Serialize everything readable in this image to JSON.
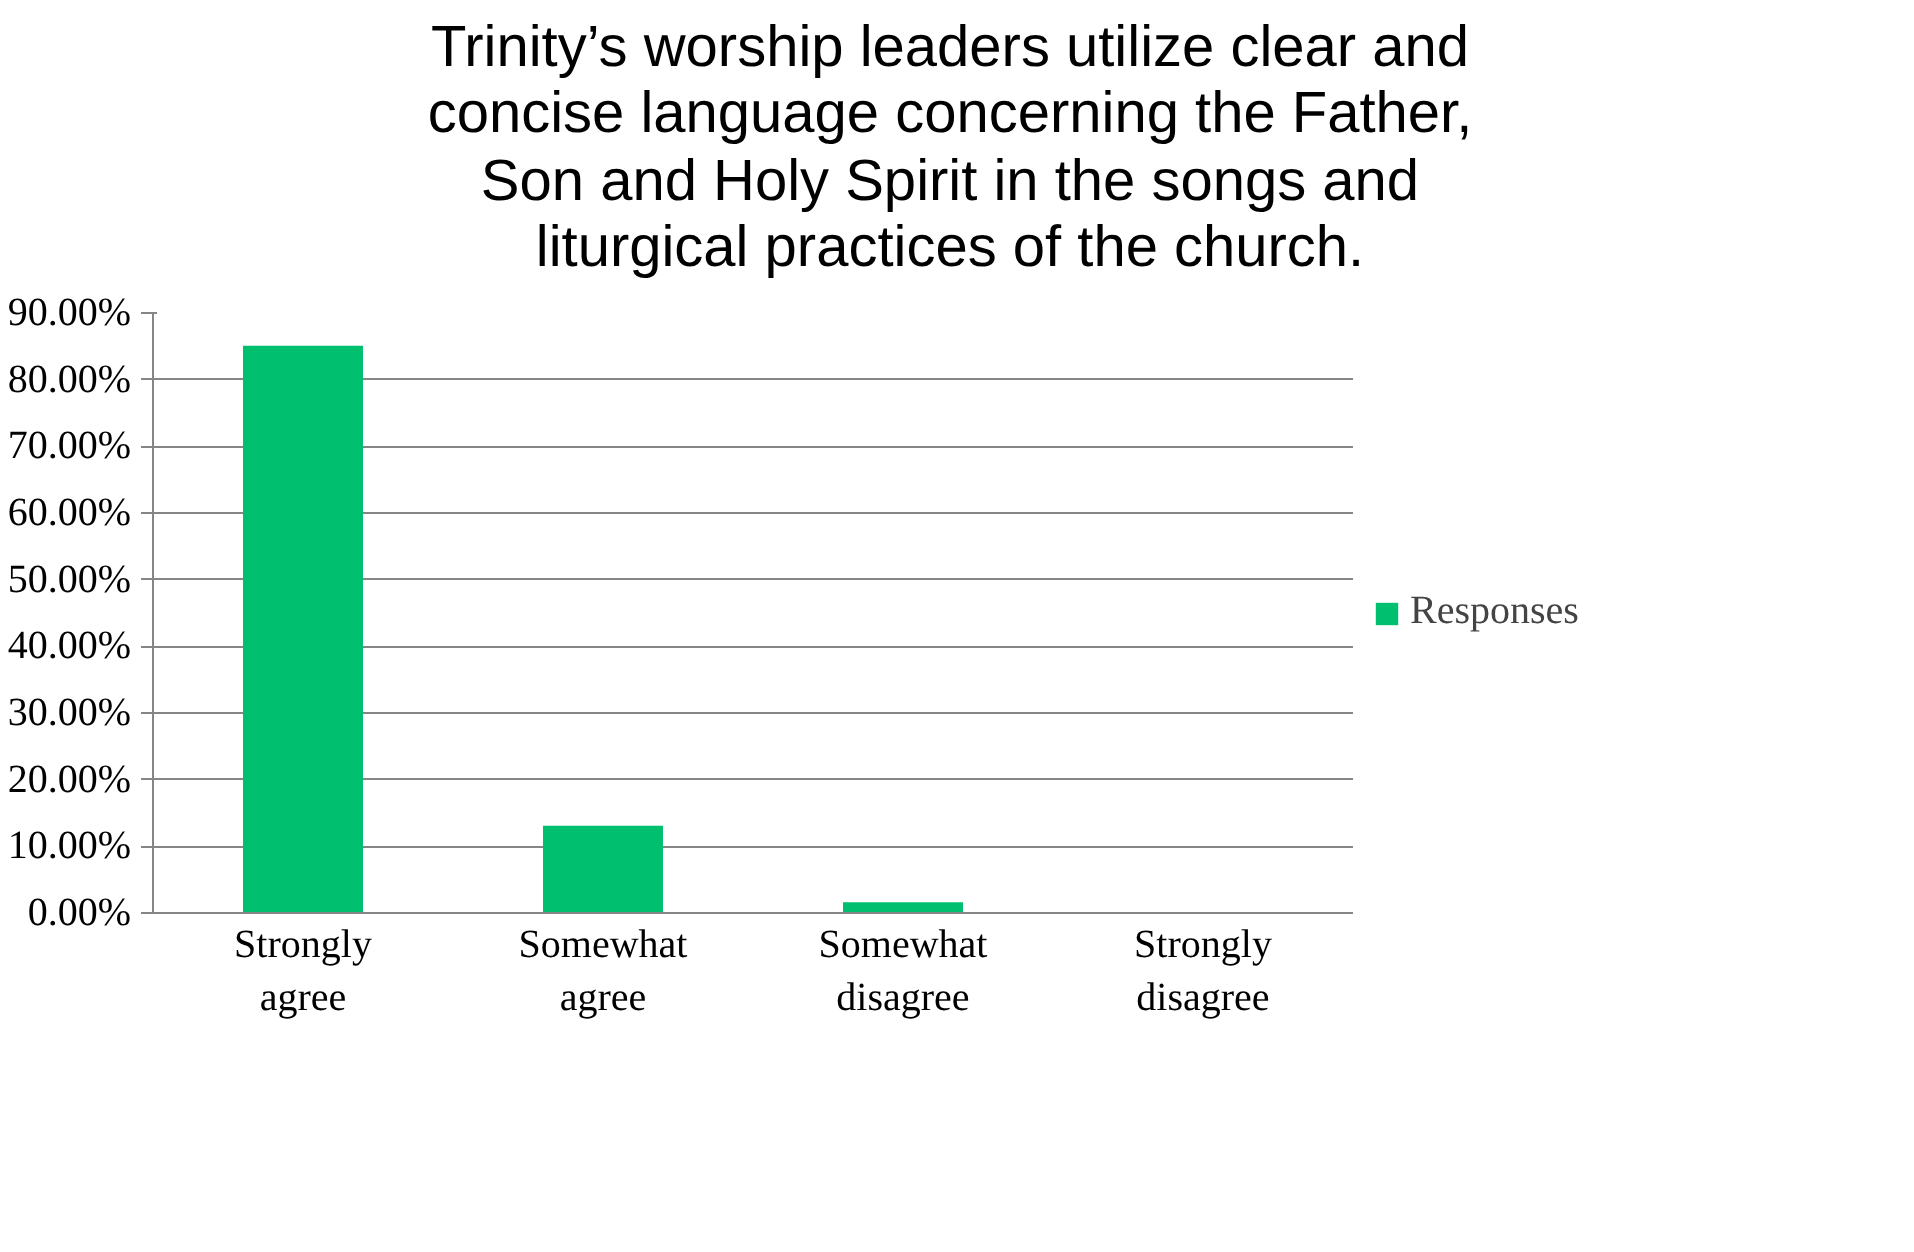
{
  "chart_data": {
    "type": "bar",
    "title": "Trinity’s worship leaders utilize clear and concise language concerning the Father, Son and Holy Spirit in the songs and liturgical practices of the church.",
    "categories": [
      "Strongly agree",
      "Somewhat agree",
      "Somewhat disagree",
      "Strongly disagree"
    ],
    "series": [
      {
        "name": "Responses",
        "color": "#00bf6f",
        "values": [
          85.1,
          13.1,
          1.6,
          0
        ]
      }
    ],
    "ylim": [
      0,
      90
    ],
    "yticks": [
      {
        "value": 0,
        "label": "0.00%"
      },
      {
        "value": 10,
        "label": "10.00%"
      },
      {
        "value": 20,
        "label": "20.00%"
      },
      {
        "value": 30,
        "label": "30.00%"
      },
      {
        "value": 40,
        "label": "40.00%"
      },
      {
        "value": 50,
        "label": "50.00%"
      },
      {
        "value": 60,
        "label": "60.00%"
      },
      {
        "value": 70,
        "label": "70.00%"
      },
      {
        "value": 80,
        "label": "80.00%"
      },
      {
        "value": 90,
        "label": "90.00%"
      }
    ],
    "grid": "y",
    "legend": "right"
  }
}
